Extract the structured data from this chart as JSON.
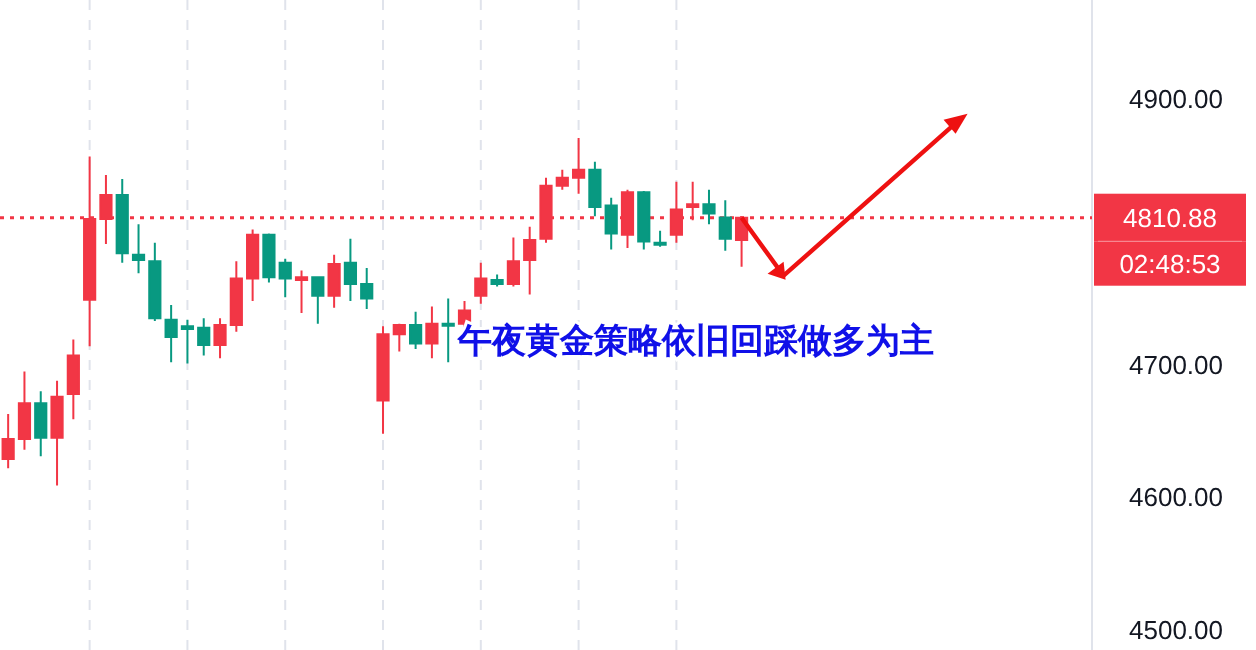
{
  "chart_data": {
    "type": "candlestick",
    "categories": [
      null,
      null,
      null,
      null,
      null,
      null,
      null,
      null,
      null,
      null,
      null,
      null,
      null,
      null,
      null,
      null,
      null,
      null,
      null,
      null,
      null,
      null,
      null,
      null,
      null,
      null,
      null,
      null,
      null,
      null,
      null,
      null,
      null,
      null,
      null,
      null,
      null,
      null,
      null,
      null,
      null,
      null,
      null,
      null,
      null,
      null,
      null,
      null,
      null,
      null,
      null,
      null,
      null,
      null,
      null,
      null,
      null,
      null,
      null,
      null,
      null,
      null,
      null,
      null,
      null,
      null,
      null
    ],
    "ohlc": [
      [
        4629,
        4663,
        4622,
        4644
      ],
      [
        4644,
        4695,
        4636,
        4671
      ],
      [
        4671,
        4680,
        4631,
        4645
      ],
      [
        4645,
        4688,
        4609,
        4676
      ],
      [
        4678,
        4719,
        4659,
        4707
      ],
      [
        4749,
        4857,
        4714,
        4810
      ],
      [
        4810,
        4843,
        4791,
        4828
      ],
      [
        4828,
        4840,
        4777,
        4784
      ],
      [
        4783,
        4806,
        4769,
        4779
      ],
      [
        4778,
        4792,
        4733,
        4735
      ],
      [
        4734,
        4745,
        4702,
        4721
      ],
      [
        4729,
        4734,
        4701,
        4727
      ],
      [
        4728,
        4735,
        4707,
        4715
      ],
      [
        4715,
        4735,
        4705,
        4730
      ],
      [
        4730,
        4778,
        4725,
        4765
      ],
      [
        4765,
        4802,
        4748,
        4798
      ],
      [
        4798,
        4799,
        4762,
        4766
      ],
      [
        4777,
        4780,
        4751,
        4765
      ],
      [
        4764,
        4771,
        4739,
        4766
      ],
      [
        4766,
        4766,
        4731,
        4752
      ],
      [
        4752,
        4783,
        4743,
        4776
      ],
      [
        4777,
        4795,
        4748,
        4761
      ],
      [
        4761,
        4773,
        4742,
        4750
      ],
      [
        4673,
        4729,
        4648,
        4723
      ],
      [
        4723,
        4731,
        4710,
        4730
      ],
      [
        4730,
        4740,
        4712,
        4716
      ],
      [
        4716,
        4744,
        4705,
        4731
      ],
      [
        4731,
        4750,
        4702,
        4730
      ],
      [
        4731,
        4748,
        4725,
        4741
      ],
      [
        4752,
        4777,
        4746,
        4765
      ],
      [
        4764,
        4768,
        4759,
        4761
      ],
      [
        4761,
        4796,
        4759,
        4778
      ],
      [
        4779,
        4804,
        4753,
        4794
      ],
      [
        4795,
        4841,
        4792,
        4835
      ],
      [
        4835,
        4847,
        4832,
        4841
      ],
      [
        4841,
        4871,
        4829,
        4847
      ],
      [
        4847,
        4853,
        4812,
        4819
      ],
      [
        4820,
        4826,
        4787,
        4799
      ],
      [
        4798,
        4832,
        4788,
        4830
      ],
      [
        4830,
        4831,
        4787,
        4793
      ],
      [
        4792,
        4801,
        4789,
        4791
      ],
      [
        4798,
        4838,
        4792,
        4817
      ],
      [
        4819,
        4838,
        4809,
        4821
      ],
      [
        4821,
        4832,
        4806,
        4814
      ],
      [
        4811,
        4824,
        4786,
        4795
      ],
      [
        4794,
        4812,
        4774,
        4810.88
      ],
      null,
      null,
      null,
      null,
      null,
      null,
      null,
      null,
      null,
      null,
      null,
      null,
      null,
      null,
      null,
      null,
      null,
      null,
      null,
      null,
      null
    ],
    "colors": [
      "#f23645",
      "#f23645",
      "#089981",
      "#f23645",
      "#f23645",
      "#f23645",
      "#f23645",
      "#089981",
      "#089981",
      "#089981",
      "#089981",
      "#089981",
      "#089981",
      "#f23645",
      "#f23645",
      "#f23645",
      "#089981",
      "#089981",
      "#f23645",
      "#089981",
      "#f23645",
      "#089981",
      "#089981",
      "#f23645",
      "#f23645",
      "#089981",
      "#f23645",
      "#089981",
      "#f23645",
      "#f23645",
      "#089981",
      "#f23645",
      "#f23645",
      "#f23645",
      "#f23645",
      "#f23645",
      "#089981",
      "#089981",
      "#f23645",
      "#089981",
      "#089981",
      "#f23645",
      "#f23645",
      "#089981",
      "#089981",
      "#f23645",
      null,
      null,
      null,
      null,
      null,
      null,
      null,
      null,
      null,
      null,
      null,
      null,
      null,
      null,
      null,
      null,
      null,
      null,
      null,
      null,
      null
    ],
    "ylim": [
      4485,
      4975
    ],
    "grid": "x",
    "yticks": [
      {
        "value": 4900,
        "label": "4900.00"
      },
      {
        "value": 4700,
        "label": "4700.00"
      },
      {
        "value": 4600,
        "label": "4600.00"
      },
      {
        "value": 4500,
        "label": "4500.00"
      }
    ],
    "ref_lines": [
      {
        "axis": "y",
        "value": 4810.88,
        "label": "4810.88",
        "color": "#f23645",
        "line_style": "dotted"
      }
    ],
    "annotations": [
      "午夜黄金策略依旧回踩做多为主",
      "02:48:53"
    ]
  }
}
